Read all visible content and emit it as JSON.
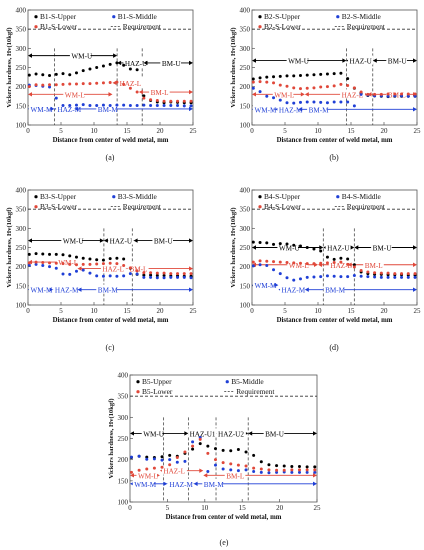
{
  "charts": [
    {
      "id": "a",
      "caption": "(a)",
      "series": [
        {
          "name": "B1-S-Upper",
          "color": "#000000",
          "y": [
            230,
            233,
            231,
            229,
            232,
            234,
            231,
            236,
            242,
            246,
            250,
            254,
            258,
            262,
            256,
            246,
            244,
            176,
            164,
            160,
            158,
            160,
            159,
            158,
            158
          ]
        },
        {
          "name": "B1-S-Middle",
          "color": "#1f3fd6",
          "y": [
            204,
            203,
            201,
            199,
            170,
            151,
            151,
            152,
            153,
            151,
            151,
            152,
            151,
            152,
            152,
            151,
            151,
            152,
            151,
            151,
            151,
            151,
            151,
            150,
            150
          ]
        },
        {
          "name": "B1-S-Lower",
          "color": "#e0483a",
          "y": [
            200,
            205,
            204,
            205,
            205,
            206,
            207,
            207,
            208,
            208,
            209,
            210,
            211,
            212,
            206,
            196,
            186,
            170,
            166,
            164,
            162,
            162,
            162,
            162,
            162
          ]
        }
      ],
      "zones": [
        {
          "text": "WM-U",
          "x1": 0,
          "x2": 13.5,
          "y": 281,
          "color": "#000000",
          "label_x": 6.5
        },
        {
          "text": "HAZ-U",
          "x1": 13.5,
          "x2": 17.5,
          "y": 262,
          "color": "#000000",
          "label_x": 14.6
        },
        {
          "text": "BM-U",
          "x1": 17.5,
          "x2": 25,
          "y": 262,
          "color": "#000000",
          "label_x": 20.2
        },
        {
          "text": "WM-L",
          "x1": 0,
          "x2": 12.8,
          "y": 180,
          "color": "#e0483a",
          "label_x": 5.5
        },
        {
          "text": "HAZ-L",
          "x1": 12.8,
          "x2": 16.8,
          "y": 210,
          "color": "#e0483a",
          "label_x": 13.8
        },
        {
          "text": "BM-L",
          "x1": 16.8,
          "x2": 25,
          "y": 186,
          "color": "#e0483a",
          "label_x": 18.5
        },
        {
          "text": "WM-M",
          "x1": 0,
          "x2": 4,
          "y": 142,
          "color": "#1f3fd6",
          "label_x": 0.3
        },
        {
          "text": "HAZ-M",
          "x1": 4,
          "x2": 7,
          "y": 142,
          "color": "#1f3fd6",
          "label_x": 4.4
        },
        {
          "text": "BM-M",
          "x1": 7,
          "x2": 25,
          "y": 142,
          "color": "#1f3fd6",
          "label_x": 10.5
        }
      ],
      "vlines": [
        4,
        13.5,
        17.3
      ]
    },
    {
      "id": "b",
      "caption": "(b)",
      "series": [
        {
          "name": "B2-S-Upper",
          "color": "#000000",
          "y": [
            220,
            223,
            225,
            226,
            227,
            228,
            228,
            229,
            230,
            231,
            232,
            233,
            234,
            235,
            221,
            196,
            183,
            177,
            176,
            175,
            174,
            175,
            175,
            175,
            175
          ]
        },
        {
          "name": "B2-S-Middle",
          "color": "#1f3fd6",
          "y": [
            196,
            187,
            175,
            171,
            165,
            158,
            157,
            159,
            160,
            160,
            159,
            158,
            160,
            160,
            160,
            150,
            180,
            178,
            176,
            176,
            175,
            176,
            176,
            175,
            175
          ]
        },
        {
          "name": "B2-S-Lower",
          "color": "#e0483a",
          "y": [
            212,
            213,
            212,
            210,
            204,
            201,
            197,
            195,
            196,
            197,
            199,
            200,
            202,
            206,
            203,
            197,
            186,
            180,
            180,
            180,
            181,
            181,
            181,
            181,
            181
          ]
        }
      ],
      "zones": [
        {
          "text": "WM-U",
          "x1": 0,
          "x2": 14.3,
          "y": 268,
          "color": "#000000",
          "label_x": 5.4
        },
        {
          "text": "HAZ-U",
          "x1": 14.3,
          "x2": 18.3,
          "y": 268,
          "color": "#000000",
          "label_x": 14.7
        },
        {
          "text": "BM-U",
          "x1": 18.3,
          "x2": 25,
          "y": 268,
          "color": "#000000",
          "label_x": 20.5
        },
        {
          "text": "WM-L",
          "x1": 0,
          "x2": 8,
          "y": 180,
          "color": "#e0483a",
          "label_x": 3.3
        },
        {
          "text": "HAZ-L",
          "x1": 8,
          "x2": 17.5,
          "y": 180,
          "color": "#e0483a",
          "label_x": 13.5
        },
        {
          "text": "BM-L",
          "x1": 17.5,
          "x2": 25,
          "y": 180,
          "color": "#e0483a",
          "label_x": 20.5
        },
        {
          "text": "WM-M",
          "x1": 0,
          "x2": 3.5,
          "y": 141,
          "color": "#1f3fd6",
          "label_x": 0.3
        },
        {
          "text": "HAZ-M",
          "x1": 3.5,
          "x2": 7,
          "y": 141,
          "color": "#1f3fd6",
          "label_x": 4.0
        },
        {
          "text": "BM-M",
          "x1": 7,
          "x2": 25,
          "y": 141,
          "color": "#1f3fd6",
          "label_x": 8.5
        }
      ],
      "vlines": [
        14.3,
        18.3
      ]
    },
    {
      "id": "c",
      "caption": "(c)",
      "series": [
        {
          "name": "B3-S-Upper",
          "color": "#000000",
          "y": [
            232,
            234,
            233,
            232,
            232,
            231,
            228,
            225,
            222,
            220,
            218,
            217,
            221,
            222,
            220,
            196,
            180,
            178,
            178,
            177,
            177,
            176,
            176,
            175,
            175
          ]
        },
        {
          "name": "B3-S-Middle",
          "color": "#1f3fd6",
          "y": [
            204,
            206,
            203,
            200,
            196,
            181,
            180,
            188,
            191,
            183,
            176,
            175,
            176,
            175,
            176,
            182,
            181,
            172,
            172,
            171,
            171,
            172,
            172,
            172,
            171
          ]
        },
        {
          "name": "B3-S-Lower",
          "color": "#e0483a",
          "y": [
            210,
            212,
            211,
            210,
            209,
            208,
            206,
            205,
            206,
            206,
            207,
            208,
            209,
            208,
            203,
            197,
            189,
            184,
            184,
            183,
            183,
            182,
            182,
            182,
            182
          ]
        }
      ],
      "zones": [
        {
          "text": "WM-U",
          "x1": 0,
          "x2": 11.5,
          "y": 268,
          "color": "#000000",
          "label_x": 5.2
        },
        {
          "text": "HAZ-U",
          "x1": 11.5,
          "x2": 16,
          "y": 268,
          "color": "#000000",
          "label_x": 12.3
        },
        {
          "text": "BM-U",
          "x1": 16,
          "x2": 25,
          "y": 268,
          "color": "#000000",
          "label_x": 19.0
        },
        {
          "text": "WM-L",
          "x1": 0,
          "x2": 7.5,
          "y": 212,
          "color": "#e0483a",
          "label_x": 4.5
        },
        {
          "text": "HAZ-L",
          "x1": 7.5,
          "x2": 15,
          "y": 195,
          "color": "#e0483a",
          "label_x": 11.2
        },
        {
          "text": "BM-L",
          "x1": 15,
          "x2": 25,
          "y": 195,
          "color": "#e0483a",
          "label_x": 15.3
        },
        {
          "text": "WM-M",
          "x1": 0,
          "x2": 3.8,
          "y": 140,
          "color": "#1f3fd6",
          "label_x": 0.3
        },
        {
          "text": "HAZ-M",
          "x1": 3.8,
          "x2": 7.5,
          "y": 140,
          "color": "#1f3fd6",
          "label_x": 4.0
        },
        {
          "text": "BM-M",
          "x1": 7.5,
          "x2": 25,
          "y": 140,
          "color": "#1f3fd6",
          "label_x": 10.5
        }
      ],
      "vlines": [
        11.5,
        15.8
      ]
    },
    {
      "id": "d",
      "caption": "(d)",
      "series": [
        {
          "name": "B4-S-Upper",
          "color": "#000000",
          "y": [
            264,
            263,
            262,
            258,
            260,
            259,
            256,
            254,
            250,
            246,
            241,
            225,
            219,
            222,
            220,
            205,
            186,
            182,
            180,
            180,
            179,
            179,
            179,
            178,
            178
          ]
        },
        {
          "name": "B4-S-Middle",
          "color": "#1f3fd6",
          "y": [
            202,
            205,
            203,
            192,
            182,
            171,
            165,
            168,
            172,
            173,
            174,
            176,
            175,
            174,
            174,
            177,
            175,
            174,
            173,
            172,
            172,
            172,
            172,
            172,
            172
          ]
        },
        {
          "name": "B4-S-Lower",
          "color": "#e0483a",
          "y": [
            212,
            215,
            214,
            213,
            212,
            211,
            210,
            209,
            208,
            208,
            209,
            210,
            211,
            212,
            206,
            199,
            190,
            186,
            184,
            183,
            183,
            182,
            182,
            182,
            182
          ]
        }
      ],
      "zones": [
        {
          "text": "WM-U",
          "x1": 0,
          "x2": 10.8,
          "y": 250,
          "color": "#000000",
          "label_x": 4.0
        },
        {
          "text": "HAZ-U",
          "x1": 10.8,
          "x2": 15.5,
          "y": 250,
          "color": "#000000",
          "label_x": 11.3
        },
        {
          "text": "BM-U",
          "x1": 15.5,
          "x2": 25,
          "y": 250,
          "color": "#000000",
          "label_x": 18.2
        },
        {
          "text": "WM-L",
          "x1": 0,
          "x2": 10,
          "y": 205,
          "color": "#e0483a",
          "label_x": 5.5
        },
        {
          "text": "HAZ-L",
          "x1": 10,
          "x2": 14.5,
          "y": 205,
          "color": "#e0483a",
          "label_x": 11.8
        },
        {
          "text": "BM-L",
          "x1": 14.5,
          "x2": 25,
          "y": 205,
          "color": "#e0483a",
          "label_x": 17.0
        },
        {
          "text": "WM-M",
          "x1": 0,
          "x2": 4,
          "y": 152,
          "color": "#1f3fd6",
          "label_x": 0.3
        },
        {
          "text": "HAZ-M",
          "x1": 4,
          "x2": 8,
          "y": 140,
          "color": "#1f3fd6",
          "label_x": 4.4
        },
        {
          "text": "BM-M",
          "x1": 8,
          "x2": 25,
          "y": 140,
          "color": "#1f3fd6",
          "label_x": 11.0
        }
      ],
      "vlines": [
        10.8,
        15.5
      ]
    },
    {
      "id": "e",
      "caption": "(e)",
      "series": [
        {
          "name": "B5-Upper",
          "color": "#000000",
          "y": [
            205,
            208,
            206,
            205,
            207,
            210,
            208,
            215,
            225,
            238,
            232,
            226,
            222,
            221,
            224,
            218,
            210,
            195,
            188,
            186,
            185,
            184,
            184,
            183,
            183
          ]
        },
        {
          "name": "B5-Middle",
          "color": "#1f3fd6",
          "y": [
            206,
            208,
            201,
            202,
            199,
            200,
            194,
            196,
            242,
            252,
            172,
            187,
            178,
            176,
            174,
            176,
            172,
            170,
            169,
            170,
            171,
            170,
            170,
            170,
            170
          ]
        },
        {
          "name": "B5-Lower",
          "color": "#e0483a",
          "y": [
            170,
            175,
            178,
            180,
            182,
            188,
            205,
            218,
            232,
            248,
            215,
            200,
            193,
            190,
            187,
            185,
            180,
            178,
            176,
            175,
            175,
            176,
            176,
            176,
            176
          ]
        }
      ],
      "zones": [
        {
          "text": "WM-U",
          "x1": 0,
          "x2": 7.8,
          "y": 262,
          "color": "#000000",
          "label_x": 1.7
        },
        {
          "text": "HAZ-U1",
          "x1": 7.8,
          "x2": 11.5,
          "y": 262,
          "color": "#000000",
          "label_x": 7.9
        },
        {
          "text": "HAZ-U2",
          "x1": 11.5,
          "x2": 15.8,
          "y": 262,
          "color": "#000000",
          "label_x": 11.7
        },
        {
          "text": "BM-U",
          "x1": 15.8,
          "x2": 25,
          "y": 262,
          "color": "#000000",
          "label_x": 18.0
        },
        {
          "text": "WM-L",
          "x1": 0,
          "x2": 4,
          "y": 163,
          "color": "#e0483a",
          "label_x": 1.0
        },
        {
          "text": "HAZ-L",
          "x1": 4,
          "x2": 9.8,
          "y": 174,
          "color": "#e0483a",
          "label_x": 4.4
        },
        {
          "text": "BM-L",
          "x1": 9.8,
          "x2": 25,
          "y": 163,
          "color": "#e0483a",
          "label_x": 12.8
        },
        {
          "text": "WM-M",
          "x1": 0,
          "x2": 5,
          "y": 143,
          "color": "#1f3fd6",
          "label_x": 0.5
        },
        {
          "text": "HAZ-M",
          "x1": 5,
          "x2": 8.5,
          "y": 143,
          "color": "#1f3fd6",
          "label_x": 5.2
        },
        {
          "text": "BM-M",
          "x1": 8.5,
          "x2": 25,
          "y": 143,
          "color": "#1f3fd6",
          "label_x": 9.8
        }
      ],
      "vlines": [
        4.5,
        7.8,
        11.5,
        15.8
      ]
    }
  ],
  "shared": {
    "ylabel": "Vickers hardness, Hv(10kgf)",
    "xlabel": "Distance from center of weld metal, mm",
    "requirement_label": "Requirement",
    "requirement_value": 350,
    "x_range": [
      0,
      25
    ],
    "y_range": [
      100,
      400
    ],
    "x_ticks": [
      0,
      5,
      10,
      15,
      20,
      25
    ],
    "y_ticks": [
      100,
      150,
      200,
      250,
      300,
      350,
      400
    ]
  },
  "chart_data": [
    {
      "type": "scatter",
      "title": "",
      "xlabel": "Distance from center of weld metal, mm",
      "ylabel": "Vickers hardness, Hv(10kgf)",
      "xlim": [
        0,
        25
      ],
      "ylim": [
        100,
        400
      ],
      "panel": "(a)"
    },
    {
      "type": "scatter",
      "title": "",
      "xlabel": "Distance from center of weld metal, mm",
      "ylabel": "Vickers hardness, Hv(10kgf)",
      "xlim": [
        0,
        25
      ],
      "ylim": [
        100,
        400
      ],
      "panel": "(b)"
    },
    {
      "type": "scatter",
      "title": "",
      "xlabel": "Distance from center of weld metal, mm",
      "ylabel": "Vickers hardness, Hv(10kgf)",
      "xlim": [
        0,
        25
      ],
      "ylim": [
        100,
        400
      ],
      "panel": "(c)"
    },
    {
      "type": "scatter",
      "title": "",
      "xlabel": "Distance from center of weld metal, mm",
      "ylabel": "Vickers hardness, Hv(10kgf)",
      "xlim": [
        0,
        25
      ],
      "ylim": [
        100,
        400
      ],
      "panel": "(d)"
    },
    {
      "type": "scatter",
      "title": "",
      "xlabel": "Distance from center of weld metal, mm",
      "ylabel": "Vickers hardness, Hv(10kgf)",
      "xlim": [
        0,
        25
      ],
      "ylim": [
        100,
        400
      ],
      "panel": "(e)"
    }
  ]
}
